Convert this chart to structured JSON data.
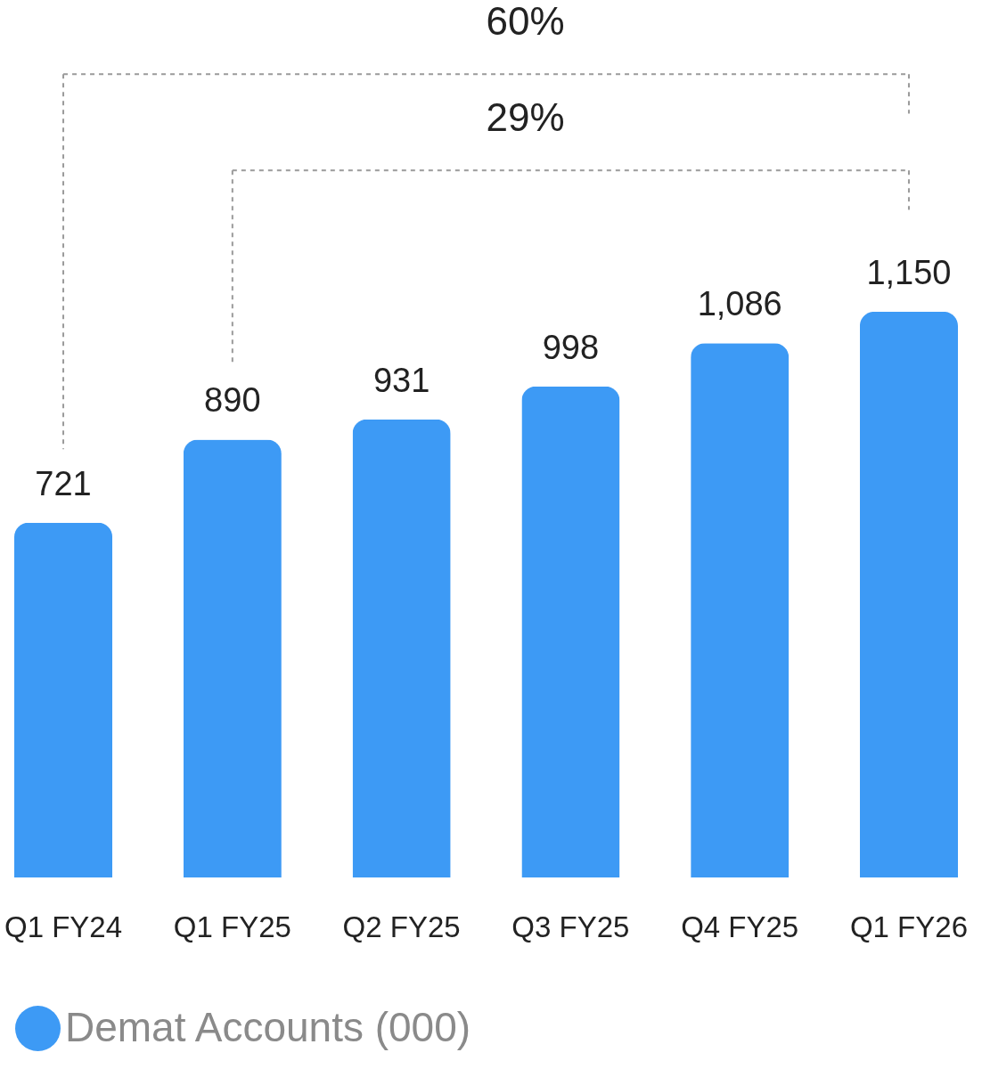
{
  "chart_data": {
    "type": "bar",
    "categories": [
      "Q1 FY24",
      "Q1 FY25",
      "Q2 FY25",
      "Q3 FY25",
      "Q4 FY25",
      "Q1 FY26"
    ],
    "series": [
      {
        "name": "Demat Accounts (000)",
        "color": "#3d9af5",
        "values": [
          721,
          890,
          931,
          998,
          1086,
          1150
        ],
        "value_labels": [
          "721",
          "890",
          "931",
          "998",
          "1,086",
          "1,150"
        ]
      }
    ],
    "legend": "bottom",
    "tick_labels": "x",
    "annotations": [
      "60%",
      "29%"
    ]
  }
}
